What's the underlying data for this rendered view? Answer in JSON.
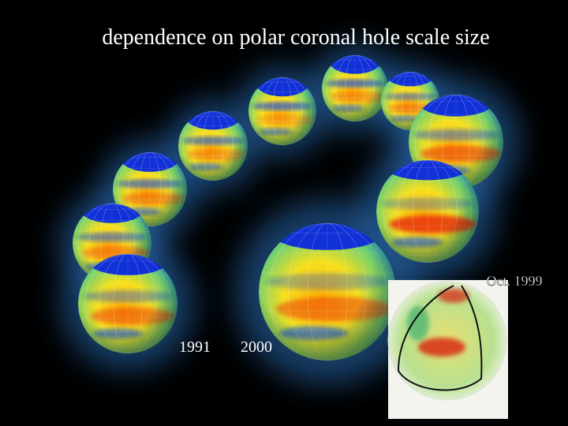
{
  "title": "dependence on polar coronal hole scale size",
  "labels": {
    "start_year": "1991",
    "end_year": "2000",
    "inset_date": "Oct. 1999"
  }
}
